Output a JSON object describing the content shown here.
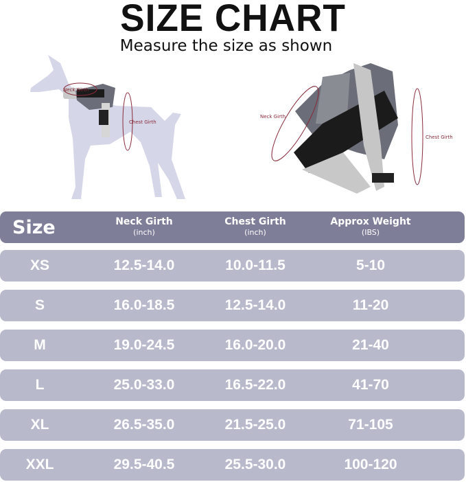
{
  "title": "SIZE CHART",
  "subtitle": "Measure the size as shown",
  "illustration": {
    "dog_neck_label": "Neck Girth",
    "dog_chest_label": "Chest Girth",
    "harness_neck_label": "Neck Girth",
    "harness_chest_label": "Chest Girth"
  },
  "table": {
    "headers": [
      {
        "label": "Size"
      },
      {
        "label": "Neck Girth",
        "unit": "(inch)"
      },
      {
        "label": "Chest Girth",
        "unit": "(inch)"
      },
      {
        "label": "Approx Weight",
        "unit": "(IBS)"
      }
    ],
    "rows": [
      [
        "XS",
        "12.5-14.0",
        "10.0-11.5",
        "5-10"
      ],
      [
        "S",
        "16.0-18.5",
        "12.5-14.0",
        "11-20"
      ],
      [
        "M",
        "19.0-24.5",
        "16.0-20.0",
        "21-40"
      ],
      [
        "L",
        "25.0-33.0",
        "16.5-22.0",
        "41-70"
      ],
      [
        "XL",
        "26.5-35.0",
        "21.5-25.0",
        "71-105"
      ],
      [
        "XXL",
        "29.5-40.5",
        "25.5-30.0",
        "100-120"
      ]
    ]
  },
  "colors": {
    "header": "#7f7e98",
    "row": "#b9b9cc",
    "measure_line": "#8a2a3a"
  }
}
